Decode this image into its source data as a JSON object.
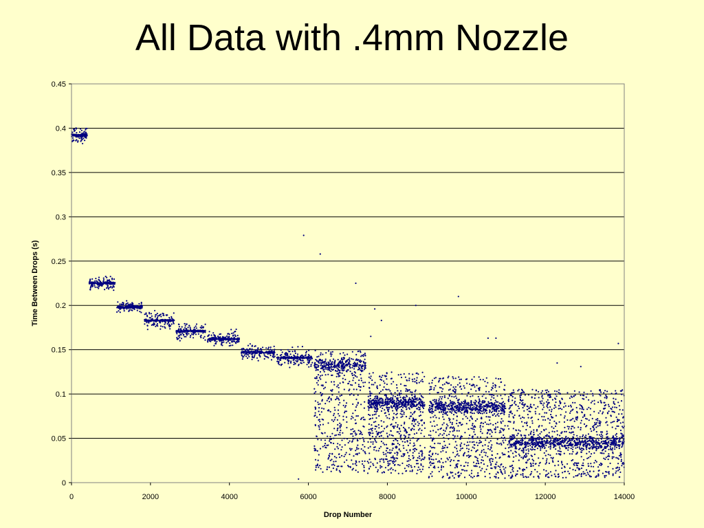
{
  "slide": {
    "title": "All Data with .4mm Nozzle"
  },
  "colors": {
    "background": "#FFFFCC",
    "marker": "#000080",
    "grid": "#000000"
  },
  "chart_data": {
    "type": "scatter",
    "title": "",
    "xlabel": "Drop Number",
    "ylabel": "Time Between Drops (s)",
    "xlim": [
      0,
      14000
    ],
    "ylim": [
      0,
      0.45
    ],
    "xticks": [
      0,
      2000,
      4000,
      6000,
      8000,
      10000,
      12000,
      14000
    ],
    "yticks": [
      0,
      0.05,
      0.1,
      0.15,
      0.2,
      0.25,
      0.3,
      0.35,
      0.4,
      0.45
    ],
    "xtick_labels": [
      "0",
      "2000",
      "4000",
      "6000",
      "8000",
      "10000",
      "12000",
      "14000"
    ],
    "ytick_labels": [
      "0",
      "0.05",
      "0.1",
      "0.15",
      "0.2",
      "0.25",
      "0.3",
      "0.35",
      "0.4",
      "0.45"
    ],
    "grid": "horizontal major",
    "legend": "none",
    "marker": "small dot",
    "clusters": [
      {
        "x_range": [
          0,
          400
        ],
        "y_center": 0.392,
        "y_spread": [
          0.38,
          0.41
        ],
        "points": 180
      },
      {
        "x_range": [
          450,
          1100
        ],
        "y_center": 0.225,
        "y_spread": [
          0.215,
          0.24
        ],
        "points": 220
      },
      {
        "x_range": [
          1150,
          1800
        ],
        "y_center": 0.198,
        "y_spread": [
          0.19,
          0.213
        ],
        "points": 220
      },
      {
        "x_range": [
          1850,
          2600
        ],
        "y_center": 0.183,
        "y_spread": [
          0.17,
          0.205
        ],
        "points": 240
      },
      {
        "x_range": [
          2650,
          3400
        ],
        "y_center": 0.171,
        "y_spread": [
          0.155,
          0.187
        ],
        "points": 240
      },
      {
        "x_range": [
          3450,
          4250
        ],
        "y_center": 0.162,
        "y_spread": [
          0.148,
          0.178
        ],
        "points": 260
      },
      {
        "x_range": [
          4300,
          5150
        ],
        "y_center": 0.147,
        "y_spread": [
          0.13,
          0.16
        ],
        "points": 280
      },
      {
        "x_range": [
          5200,
          6100
        ],
        "y_center": 0.141,
        "y_spread": [
          0.12,
          0.16
        ],
        "points": 300
      },
      {
        "x_range": [
          6150,
          7450
        ],
        "y_center": 0.133,
        "y_spread": [
          0.01,
          0.15
        ],
        "points": 700
      },
      {
        "x_range": [
          7500,
          8950
        ],
        "y_center": 0.09,
        "y_spread": [
          0.01,
          0.125
        ],
        "points": 900
      },
      {
        "x_range": [
          9050,
          11000
        ],
        "y_center": 0.085,
        "y_spread": [
          0.005,
          0.12
        ],
        "points": 1100
      },
      {
        "x_range": [
          11050,
          14000
        ],
        "y_center": 0.045,
        "y_spread": [
          0.005,
          0.105
        ],
        "points": 1500
      }
    ],
    "outliers": [
      {
        "x": 5880,
        "y": 0.279
      },
      {
        "x": 6300,
        "y": 0.258
      },
      {
        "x": 7200,
        "y": 0.225
      },
      {
        "x": 7680,
        "y": 0.196
      },
      {
        "x": 8720,
        "y": 0.2
      },
      {
        "x": 9800,
        "y": 0.21
      },
      {
        "x": 10550,
        "y": 0.163
      },
      {
        "x": 10750,
        "y": 0.163
      },
      {
        "x": 12300,
        "y": 0.135
      },
      {
        "x": 12900,
        "y": 0.131
      },
      {
        "x": 13850,
        "y": 0.157
      },
      {
        "x": 5750,
        "y": 0.004
      },
      {
        "x": 7850,
        "y": 0.183
      },
      {
        "x": 7580,
        "y": 0.165
      }
    ]
  }
}
